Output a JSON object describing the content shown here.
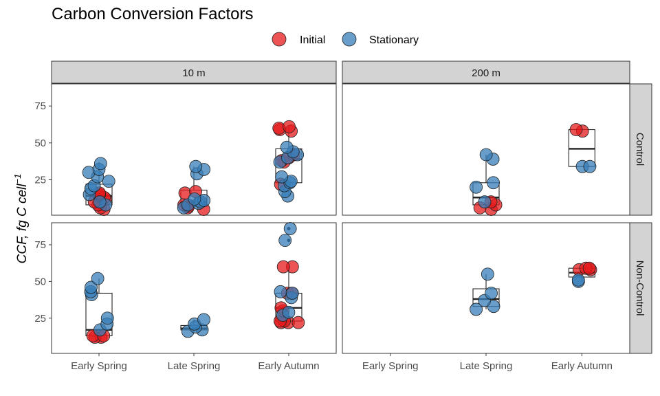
{
  "chart_data": {
    "type": "scatter",
    "title": "Carbon Conversion Factors",
    "ylabel_main": "CCF, fg C cell",
    "ylabel_exp": "−1",
    "xlabel": "",
    "legend": [
      {
        "name": "Initial",
        "color": "#e41a1c"
      },
      {
        "name": "Stationary",
        "color": "#377eb8"
      }
    ],
    "categories": [
      "Early Spring",
      "Late Spring",
      "Early Autumn"
    ],
    "col_strips": [
      "10 m",
      "200 m"
    ],
    "row_strips": [
      "Control",
      "Non-Control"
    ],
    "y_ticks": [
      25,
      50,
      75
    ],
    "ylim": [
      1,
      90
    ],
    "panels": [
      {
        "row": 0,
        "col": 0,
        "groups": [
          {
            "cat": 0,
            "box": {
              "q1": 8,
              "median": 14,
              "q3": 22,
              "lo": 5,
              "hi": 37
            },
            "initial": [
              5,
              6,
              8,
              10,
              12,
              13,
              14,
              15,
              16
            ],
            "stationary": [
              8,
              10,
              15,
              19,
              21,
              24,
              27,
              30,
              32,
              36
            ]
          },
          {
            "cat": 1,
            "box": {
              "q1": 7,
              "median": 10,
              "q3": 18,
              "lo": 5,
              "hi": 34
            },
            "initial": [
              5,
              6,
              7,
              8,
              16,
              17
            ],
            "stationary": [
              6,
              8,
              9,
              10,
              11,
              12,
              29,
              32,
              34
            ]
          },
          {
            "cat": 2,
            "box": {
              "q1": 23,
              "median": 39,
              "q3": 46,
              "lo": 14,
              "hi": 61
            },
            "initial": [
              22,
              37,
              38,
              40,
              42,
              58,
              59,
              60,
              61
            ],
            "stationary": [
              14,
              17,
              21,
              23,
              24,
              27,
              37,
              40,
              42,
              44,
              47
            ]
          }
        ]
      },
      {
        "row": 0,
        "col": 1,
        "groups": [
          {
            "cat": 1,
            "box": {
              "q1": 8,
              "median": 13,
              "q3": 23,
              "lo": 5,
              "hi": 42
            },
            "initial": [
              5,
              6,
              8,
              10
            ],
            "stationary": [
              10,
              20,
              23,
              39,
              42
            ]
          },
          {
            "cat": 2,
            "box": {
              "q1": 34,
              "median": 46,
              "q3": 59,
              "lo": 34,
              "hi": 59
            },
            "initial": [
              58,
              59
            ],
            "stationary": [
              34,
              34
            ]
          }
        ]
      },
      {
        "row": 1,
        "col": 0,
        "groups": [
          {
            "cat": 0,
            "box": {
              "q1": 13,
              "median": 17,
              "q3": 42,
              "lo": 12,
              "hi": 52
            },
            "initial": [
              12,
              12,
              13,
              13
            ],
            "stationary": [
              17,
              21,
              25,
              41,
              43,
              46,
              52
            ]
          },
          {
            "cat": 1,
            "box": {
              "q1": 17,
              "median": 18,
              "q3": 20,
              "lo": 16,
              "hi": 24
            },
            "initial": [],
            "stationary": [
              16,
              17,
              19,
              21,
              24
            ]
          },
          {
            "cat": 2,
            "box": {
              "q1": 23,
              "median": 32,
              "q3": 42,
              "lo": 22,
              "hi": 60
            },
            "outliers": [
              78,
              86
            ],
            "initial": [
              22,
              22,
              22,
              23,
              23,
              30,
              32,
              42,
              42,
              60,
              60
            ],
            "stationary": [
              27,
              29,
              39,
              42,
              43,
              78,
              86
            ]
          }
        ]
      },
      {
        "row": 1,
        "col": 1,
        "groups": [
          {
            "cat": 1,
            "box": {
              "q1": 33,
              "median": 38,
              "q3": 45,
              "lo": 31,
              "hi": 55
            },
            "initial": [],
            "stationary": [
              31,
              33,
              37,
              42,
              55
            ]
          },
          {
            "cat": 2,
            "box": {
              "q1": 53,
              "median": 56,
              "q3": 59,
              "lo": 50,
              "hi": 59
            },
            "initial": [
              58,
              58,
              59,
              59
            ],
            "stationary": [
              50,
              51
            ]
          }
        ]
      }
    ]
  }
}
